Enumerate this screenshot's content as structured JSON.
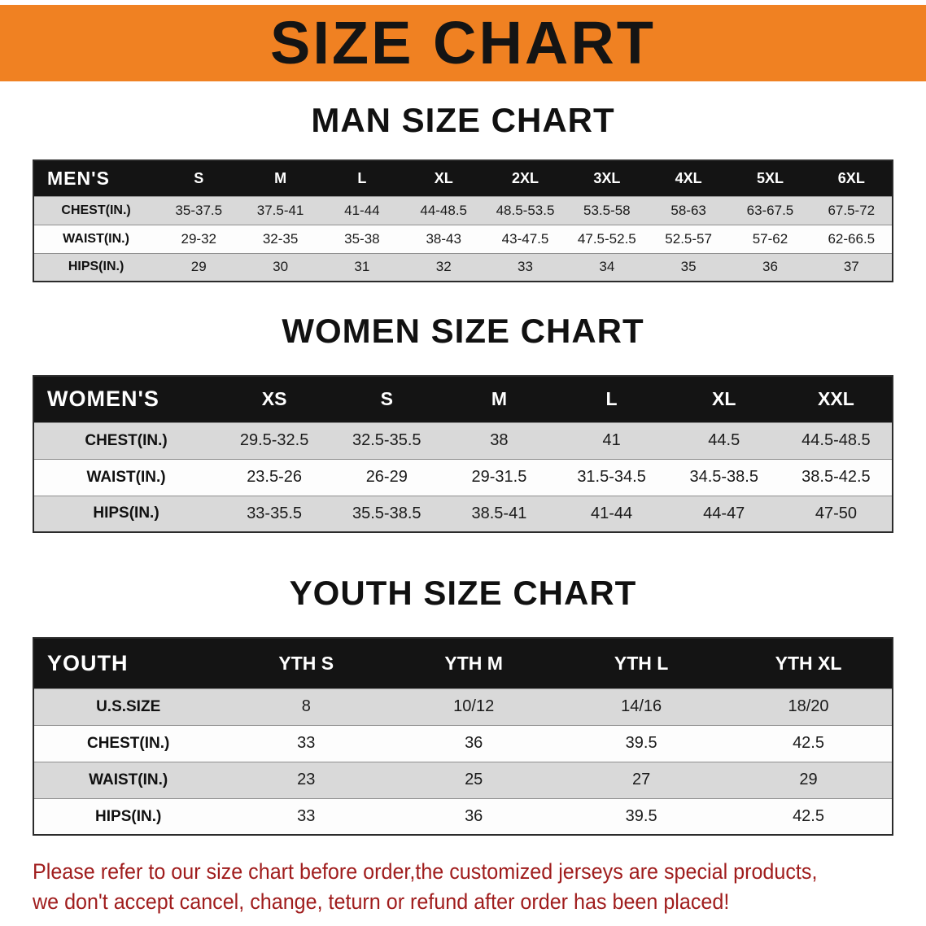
{
  "page": {
    "banner_title": "SIZE CHART",
    "disclaimer_line1": "Please refer to our size chart before order,the customized jerseys are special products,",
    "disclaimer_line2": "we don't accept cancel, change, teturn or refund after order has been placed!"
  },
  "colors": {
    "banner_bg": "#f08122",
    "table_header_bg": "#141414",
    "row_shaded_bg": "#d9d9d9",
    "disclaimer_red": "#a01d1d"
  },
  "men_chart": {
    "heading": "MAN SIZE CHART",
    "table": {
      "columns": [
        "MEN'S",
        "S",
        "M",
        "L",
        "XL",
        "2XL",
        "3XL",
        "4XL",
        "5XL",
        "6XL"
      ],
      "rows": [
        {
          "label": "CHEST(IN.)",
          "values": [
            "35-37.5",
            "37.5-41",
            "41-44",
            "44-48.5",
            "48.5-53.5",
            "53.5-58",
            "58-63",
            "63-67.5",
            "67.5-72"
          ]
        },
        {
          "label": "WAIST(IN.)",
          "values": [
            "29-32",
            "32-35",
            "35-38",
            "38-43",
            "43-47.5",
            "47.5-52.5",
            "52.5-57",
            "57-62",
            "62-66.5"
          ]
        },
        {
          "label": "HIPS(IN.)",
          "values": [
            "29",
            "30",
            "31",
            "32",
            "33",
            "34",
            "35",
            "36",
            "37"
          ]
        }
      ]
    }
  },
  "women_chart": {
    "heading": "WOMEN SIZE CHART",
    "table": {
      "columns": [
        "WOMEN'S",
        "XS",
        "S",
        "M",
        "L",
        "XL",
        "XXL"
      ],
      "rows": [
        {
          "label": "CHEST(IN.)",
          "values": [
            "29.5-32.5",
            "32.5-35.5",
            "38",
            "41",
            "44.5",
            "44.5-48.5"
          ]
        },
        {
          "label": "WAIST(IN.)",
          "values": [
            "23.5-26",
            "26-29",
            "29-31.5",
            "31.5-34.5",
            "34.5-38.5",
            "38.5-42.5"
          ]
        },
        {
          "label": "HIPS(IN.)",
          "values": [
            "33-35.5",
            "35.5-38.5",
            "38.5-41",
            "41-44",
            "44-47",
            "47-50"
          ]
        }
      ]
    }
  },
  "youth_chart": {
    "heading": "YOUTH SIZE CHART",
    "table": {
      "columns": [
        "YOUTH",
        "YTH S",
        "YTH M",
        "YTH L",
        "YTH XL"
      ],
      "rows": [
        {
          "label": "U.S.SIZE",
          "values": [
            "8",
            "10/12",
            "14/16",
            "18/20"
          ]
        },
        {
          "label": "CHEST(IN.)",
          "values": [
            "33",
            "36",
            "39.5",
            "42.5"
          ]
        },
        {
          "label": "WAIST(IN.)",
          "values": [
            "23",
            "25",
            "27",
            "29"
          ]
        },
        {
          "label": "HIPS(IN.)",
          "values": [
            "33",
            "36",
            "39.5",
            "42.5"
          ]
        }
      ]
    }
  }
}
